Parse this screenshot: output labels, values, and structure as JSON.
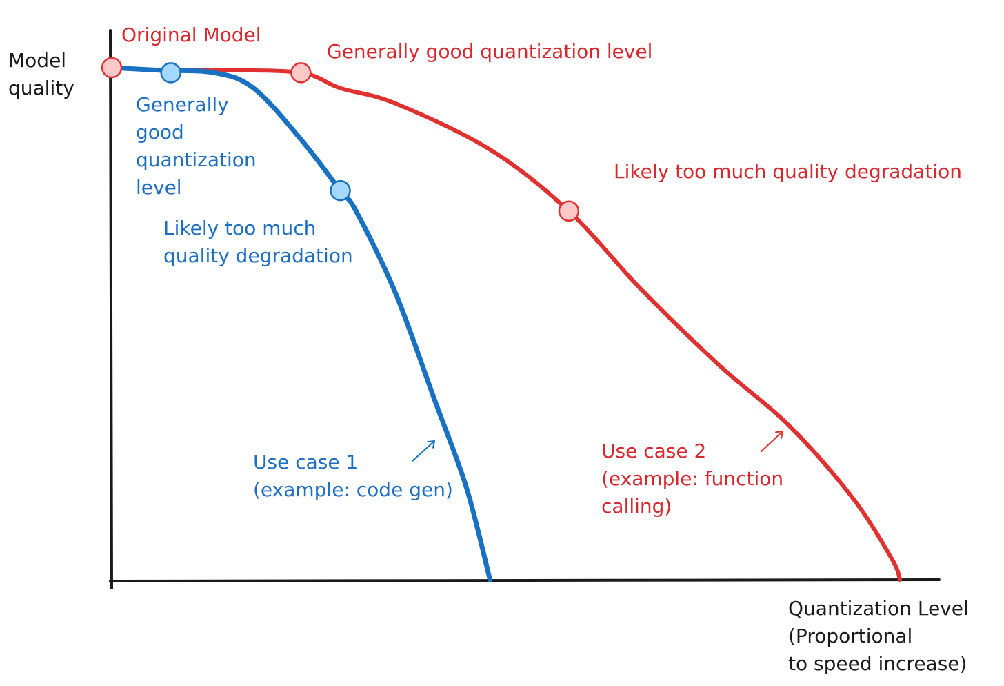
{
  "colors": {
    "axis": "#1a1a1a",
    "series_red": "#e03131",
    "series_blue": "#1971c2",
    "marker_red_fill": "#ffc9c9",
    "marker_blue_fill": "#a5d8ff",
    "label_red": "#d9272e",
    "label_blue": "#1e6fc4"
  },
  "chart_data": {
    "type": "line",
    "title": "",
    "ylabel": "Model\nquality",
    "xlabel": "Quantization Level\n(Proportional\nto speed increase)",
    "grid": false,
    "xlim": [
      0,
      1
    ],
    "ylim": [
      0,
      1
    ],
    "series": [
      {
        "name": "Use case 2\n(example: function\ncalling)",
        "color": "#e03131",
        "x": [
          0.0,
          0.07,
          0.14,
          0.24,
          0.29,
          0.36,
          0.48,
          0.58,
          0.67,
          0.77,
          0.86,
          0.94,
          0.99,
          1.0
        ],
        "y": [
          1.0,
          0.995,
          0.995,
          0.99,
          0.96,
          0.93,
          0.84,
          0.72,
          0.57,
          0.42,
          0.3,
          0.16,
          0.04,
          0.0
        ]
      },
      {
        "name": "Use case 1\n(example: code gen)",
        "color": "#1971c2",
        "x": [
          0.0,
          0.06,
          0.13,
          0.18,
          0.24,
          0.29,
          0.31,
          0.36,
          0.41,
          0.45,
          0.48
        ],
        "y": [
          1.0,
          0.995,
          0.99,
          0.96,
          0.86,
          0.76,
          0.72,
          0.56,
          0.35,
          0.18,
          0.0
        ]
      }
    ],
    "markers": [
      {
        "series": 0,
        "x": 0.0,
        "y": 1.0,
        "label": "Original Model"
      },
      {
        "series": 0,
        "x": 0.24,
        "y": 0.99,
        "label": "Generally good quantization level"
      },
      {
        "series": 0,
        "x": 0.58,
        "y": 0.72,
        "label": "Likely too much quality degradation"
      },
      {
        "series": 1,
        "x": 0.075,
        "y": 0.99,
        "label": "Generally\ngood\nquantization\nlevel"
      },
      {
        "series": 1,
        "x": 0.29,
        "y": 0.76,
        "label": "Likely too much\nquality degradation"
      }
    ]
  }
}
